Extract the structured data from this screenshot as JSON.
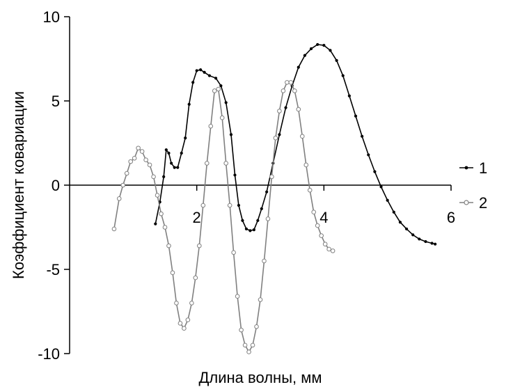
{
  "chart_data": {
    "type": "line",
    "title": "",
    "xlabel": "Длина волны, мм",
    "ylabel": "Коэффициент ковариации",
    "xlim": [
      0,
      6
    ],
    "ylim": [
      -10,
      10
    ],
    "x_ticks": [
      2,
      4,
      6
    ],
    "x_tick_labels": [
      "2",
      "4",
      "6"
    ],
    "y_ticks": [
      10,
      5,
      0,
      -5,
      -10
    ],
    "y_tick_labels": [
      "10",
      "5",
      "0",
      "-5",
      "-10"
    ],
    "grid": false,
    "legend_position": "right",
    "series": [
      {
        "name": "1",
        "color": "#000000",
        "marker": "filled-dot",
        "points": [
          [
            1.35,
            -2.3
          ],
          [
            1.42,
            -1.0
          ],
          [
            1.48,
            0.5
          ],
          [
            1.52,
            2.1
          ],
          [
            1.56,
            1.9
          ],
          [
            1.6,
            1.3
          ],
          [
            1.65,
            1.05
          ],
          [
            1.7,
            1.05
          ],
          [
            1.76,
            1.9
          ],
          [
            1.82,
            2.8
          ],
          [
            1.88,
            4.8
          ],
          [
            1.94,
            6.1
          ],
          [
            2.0,
            6.8
          ],
          [
            2.06,
            6.85
          ],
          [
            2.12,
            6.7
          ],
          [
            2.2,
            6.5
          ],
          [
            2.3,
            6.35
          ],
          [
            2.38,
            5.9
          ],
          [
            2.46,
            4.9
          ],
          [
            2.54,
            3.0
          ],
          [
            2.6,
            0.6
          ],
          [
            2.66,
            -1.2
          ],
          [
            2.72,
            -2.1
          ],
          [
            2.78,
            -2.6
          ],
          [
            2.84,
            -2.7
          ],
          [
            2.9,
            -2.65
          ],
          [
            2.96,
            -2.1
          ],
          [
            3.02,
            -1.4
          ],
          [
            3.1,
            -0.4
          ],
          [
            3.2,
            1.3
          ],
          [
            3.3,
            3.0
          ],
          [
            3.4,
            4.6
          ],
          [
            3.5,
            5.9
          ],
          [
            3.6,
            7.0
          ],
          [
            3.7,
            7.7
          ],
          [
            3.8,
            8.1
          ],
          [
            3.9,
            8.35
          ],
          [
            4.0,
            8.3
          ],
          [
            4.1,
            8.0
          ],
          [
            4.2,
            7.4
          ],
          [
            4.3,
            6.5
          ],
          [
            4.4,
            5.3
          ],
          [
            4.5,
            4.1
          ],
          [
            4.6,
            2.9
          ],
          [
            4.7,
            1.8
          ],
          [
            4.8,
            0.8
          ],
          [
            4.9,
            -0.1
          ],
          [
            5.0,
            -0.9
          ],
          [
            5.1,
            -1.6
          ],
          [
            5.2,
            -2.2
          ],
          [
            5.3,
            -2.6
          ],
          [
            5.4,
            -2.95
          ],
          [
            5.5,
            -3.2
          ],
          [
            5.6,
            -3.35
          ],
          [
            5.7,
            -3.45
          ],
          [
            5.75,
            -3.5
          ]
        ]
      },
      {
        "name": "2",
        "color": "#808080",
        "marker": "open-circle",
        "points": [
          [
            0.7,
            -2.6
          ],
          [
            0.78,
            -0.8
          ],
          [
            0.84,
            0.0
          ],
          [
            0.9,
            0.7
          ],
          [
            0.96,
            1.4
          ],
          [
            1.02,
            1.6
          ],
          [
            1.08,
            2.2
          ],
          [
            1.14,
            2.0
          ],
          [
            1.2,
            1.5
          ],
          [
            1.26,
            1.2
          ],
          [
            1.32,
            0.5
          ],
          [
            1.38,
            -0.6
          ],
          [
            1.44,
            -1.7
          ],
          [
            1.5,
            -2.5
          ],
          [
            1.56,
            -3.6
          ],
          [
            1.62,
            -5.2
          ],
          [
            1.68,
            -7.0
          ],
          [
            1.74,
            -8.2
          ],
          [
            1.8,
            -8.5
          ],
          [
            1.86,
            -8.0
          ],
          [
            1.92,
            -7.0
          ],
          [
            1.98,
            -5.5
          ],
          [
            2.04,
            -3.6
          ],
          [
            2.1,
            -1.2
          ],
          [
            2.16,
            1.3
          ],
          [
            2.22,
            3.5
          ],
          [
            2.28,
            5.6
          ],
          [
            2.34,
            5.7
          ],
          [
            2.4,
            4.0
          ],
          [
            2.46,
            1.3
          ],
          [
            2.52,
            -1.2
          ],
          [
            2.58,
            -4.0
          ],
          [
            2.64,
            -6.6
          ],
          [
            2.7,
            -8.6
          ],
          [
            2.76,
            -9.5
          ],
          [
            2.82,
            -9.9
          ],
          [
            2.88,
            -9.5
          ],
          [
            2.94,
            -8.4
          ],
          [
            3.0,
            -6.8
          ],
          [
            3.06,
            -4.5
          ],
          [
            3.12,
            -2.0
          ],
          [
            3.18,
            0.5
          ],
          [
            3.24,
            2.8
          ],
          [
            3.3,
            4.4
          ],
          [
            3.36,
            5.6
          ],
          [
            3.42,
            6.1
          ],
          [
            3.48,
            6.1
          ],
          [
            3.54,
            5.6
          ],
          [
            3.6,
            4.5
          ],
          [
            3.66,
            2.9
          ],
          [
            3.72,
            1.2
          ],
          [
            3.78,
            -0.3
          ],
          [
            3.84,
            -1.6
          ],
          [
            3.9,
            -2.4
          ],
          [
            3.96,
            -3.0
          ],
          [
            4.02,
            -3.5
          ],
          [
            4.08,
            -3.8
          ],
          [
            4.14,
            -3.9
          ]
        ]
      }
    ]
  }
}
